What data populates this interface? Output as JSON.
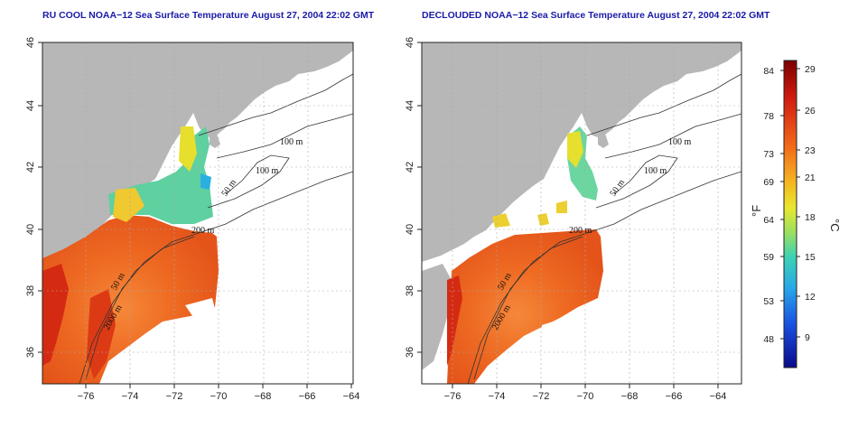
{
  "panels": [
    {
      "id": "left",
      "title": "RU COOL NOAA−12 Sea Surface Temperature August 27, 2004 22:02 GMT"
    },
    {
      "id": "right",
      "title": "DECLOUDED NOAA−12 Sea Surface Temperature August 27, 2004 22:02 GMT"
    }
  ],
  "axes": {
    "x_ticks": [
      "−76",
      "−74",
      "−72",
      "−70",
      "−68",
      "−66",
      "−64"
    ],
    "y_ticks": [
      "36",
      "38",
      "40",
      "42",
      "44",
      "46"
    ]
  },
  "contour_labels": [
    "100 m",
    "100 m",
    "50 m",
    "200 m",
    "50 m",
    "2000 m"
  ],
  "colorbar": {
    "fahrenheit_ticks": [
      "84",
      "78",
      "73",
      "69",
      "64",
      "59",
      "53",
      "48"
    ],
    "celsius_ticks": [
      "29",
      "26",
      "23",
      "21",
      "18",
      "15",
      "12",
      "9"
    ],
    "fahrenheit_unit": "°F",
    "celsius_unit": "°C"
  },
  "colors": {
    "land": "#b7b7b7",
    "ocean_missing": "#ffffff",
    "sst_warm": "#e8581a",
    "sst_hot": "#d22a10",
    "sst_mid": "#f3a81e",
    "sst_cool": "#62d2a0",
    "title": "#1a1aa8"
  }
}
